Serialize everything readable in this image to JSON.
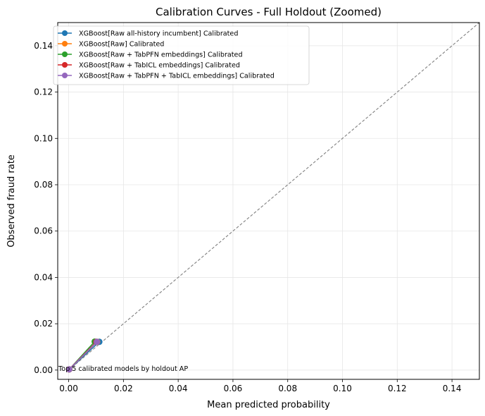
{
  "chart_data": {
    "type": "line",
    "title": "Calibration Curves - Full Holdout (Zoomed)",
    "xlabel": "Mean predicted probability",
    "ylabel": "Observed fraud rate",
    "xlim": [
      -0.004,
      0.15
    ],
    "ylim": [
      -0.004,
      0.15
    ],
    "xticks": [
      0.0,
      0.02,
      0.04,
      0.06,
      0.08,
      0.1,
      0.12,
      0.14
    ],
    "xtick_labels": [
      "0.00",
      "0.02",
      "0.04",
      "0.06",
      "0.08",
      "0.10",
      "0.12",
      "0.14"
    ],
    "yticks": [
      0.0,
      0.02,
      0.04,
      0.06,
      0.08,
      0.1,
      0.12,
      0.14
    ],
    "ytick_labels": [
      "0.00",
      "0.02",
      "0.04",
      "0.06",
      "0.08",
      "0.10",
      "0.12",
      "0.14"
    ],
    "grid": true,
    "legend_position": "top-left",
    "reference_line": {
      "style": "dashed",
      "color": "#808080",
      "from": [
        0,
        0
      ],
      "to": [
        0.15,
        0.15
      ]
    },
    "series": [
      {
        "name": "XGBoost[Raw all-history incumbent] Calibrated",
        "color": "#1f77b4",
        "x": [
          0.0002,
          0.0112
        ],
        "y": [
          0.0003,
          0.0122
        ]
      },
      {
        "name": "XGBoost[Raw] Calibrated",
        "color": "#ff7f0e",
        "x": [
          0.0002,
          0.0104
        ],
        "y": [
          0.0003,
          0.0122
        ]
      },
      {
        "name": "XGBoost[Raw + TabPFN embeddings] Calibrated",
        "color": "#2ca02c",
        "x": [
          0.0002,
          0.0095
        ],
        "y": [
          0.0003,
          0.0123
        ]
      },
      {
        "name": "XGBoost[Raw + TabICL embeddings] Calibrated",
        "color": "#d62728",
        "x": [
          0.0002,
          0.0101
        ],
        "y": [
          0.0003,
          0.0122
        ]
      },
      {
        "name": "XGBoost[Raw + TabPFN + TabICL embeddings] Calibrated",
        "color": "#9467bd",
        "x": [
          0.0002,
          0.0103
        ],
        "y": [
          0.0003,
          0.0122
        ]
      }
    ],
    "annotation": "Top 5 calibrated models by holdout AP"
  }
}
